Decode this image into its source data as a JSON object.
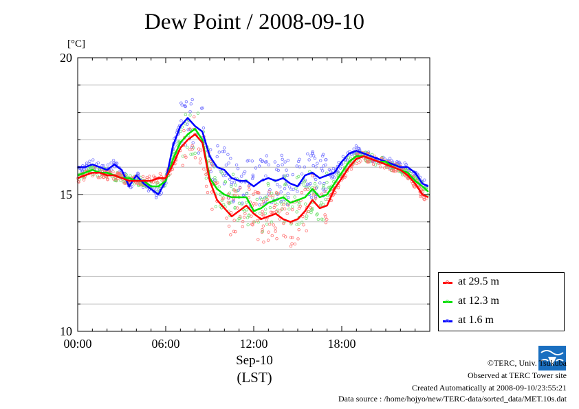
{
  "title": "Dew Point / 2008-09-10",
  "unit_label": "[°C]",
  "x_label_line1": "Sep-10",
  "x_label_line2": "(LST)",
  "credits": {
    "line1": "©TERC, Univ. Tsukuba",
    "line2": "Observed at TERC Tower site",
    "line3": "Created Automatically at 2008-09-10/23:55:21",
    "line4": "Data source : /home/hojyo/new/TERC-data/sorted_data/MET.10s.dat"
  },
  "logo_text": "TERC",
  "legend": [
    {
      "label": "at 29.5 m",
      "color": "#ff0000"
    },
    {
      "label": "at 12.3 m",
      "color": "#00e000"
    },
    {
      "label": "at 1.6 m",
      "color": "#0000ff"
    }
  ],
  "chart_data": {
    "type": "line",
    "title": "Dew Point / 2008-09-10",
    "ylabel": "[°C]",
    "xlabel": "Sep-10 (LST)",
    "xlim": [
      0,
      24
    ],
    "ylim": [
      10,
      20
    ],
    "x_ticks": [
      0,
      6,
      12,
      18
    ],
    "x_tick_labels": [
      "00:00",
      "06:00",
      "12:00",
      "18:00"
    ],
    "y_ticks": [
      10,
      15,
      20
    ],
    "y_tick_labels": [
      "10",
      "15",
      "20"
    ],
    "grid": true,
    "legend_position": "bottom-right",
    "x": [
      0,
      0.5,
      1,
      1.5,
      2,
      2.5,
      3,
      3.5,
      4,
      4.5,
      5,
      5.5,
      6,
      6.5,
      7,
      7.5,
      8,
      8.5,
      9,
      9.5,
      10,
      10.5,
      11,
      11.5,
      12,
      12.5,
      13,
      13.5,
      14,
      14.5,
      15,
      15.5,
      16,
      16.5,
      17,
      17.5,
      18,
      18.5,
      19,
      19.5,
      20,
      20.5,
      21,
      21.5,
      22,
      22.5,
      23,
      23.5,
      23.9
    ],
    "series": [
      {
        "name": "at 29.5 m",
        "color": "#ff0000",
        "values": [
          15.6,
          15.7,
          15.8,
          15.8,
          15.7,
          15.7,
          15.6,
          15.5,
          15.5,
          15.5,
          15.5,
          15.6,
          15.6,
          16.1,
          16.7,
          17.0,
          17.2,
          16.9,
          15.5,
          14.8,
          14.5,
          14.2,
          14.4,
          14.6,
          14.3,
          14.1,
          14.2,
          14.3,
          14.1,
          14.0,
          14.1,
          14.4,
          14.8,
          14.5,
          14.6,
          15.2,
          15.6,
          16.0,
          16.3,
          16.4,
          16.3,
          16.2,
          16.1,
          16.0,
          15.9,
          15.7,
          15.4,
          15.0,
          14.9
        ]
      },
      {
        "name": "at 12.3 m",
        "color": "#00e000",
        "values": [
          15.7,
          15.8,
          15.9,
          15.8,
          15.8,
          15.7,
          15.6,
          15.6,
          15.5,
          15.5,
          15.3,
          15.3,
          15.5,
          16.3,
          16.9,
          17.2,
          17.4,
          17.0,
          15.6,
          15.2,
          15.0,
          14.9,
          14.9,
          14.9,
          14.4,
          14.5,
          14.7,
          14.8,
          14.9,
          14.7,
          14.8,
          14.9,
          15.2,
          14.9,
          15.0,
          15.4,
          15.8,
          16.2,
          16.4,
          16.4,
          16.3,
          16.2,
          16.2,
          16.0,
          15.9,
          15.8,
          15.5,
          15.3,
          15.1
        ]
      },
      {
        "name": "at 1.6 m",
        "color": "#0000ff",
        "values": [
          16.0,
          16.0,
          16.1,
          16.0,
          15.9,
          16.1,
          15.9,
          15.3,
          15.7,
          15.4,
          15.2,
          15.0,
          15.5,
          16.8,
          17.5,
          17.8,
          17.5,
          17.3,
          16.4,
          16.0,
          15.9,
          15.6,
          15.5,
          15.5,
          15.3,
          15.5,
          15.6,
          15.5,
          15.6,
          15.4,
          15.3,
          15.7,
          15.8,
          15.6,
          15.7,
          15.8,
          16.2,
          16.5,
          16.6,
          16.5,
          16.4,
          16.3,
          16.2,
          16.1,
          16.0,
          16.0,
          15.8,
          15.4,
          15.3
        ]
      }
    ]
  }
}
